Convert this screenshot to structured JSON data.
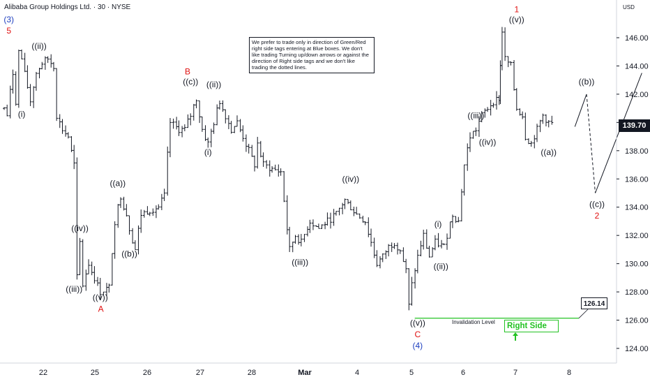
{
  "header": {
    "title": "Alibaba Group Holdings Ltd. · 30 · NYSE",
    "currency": "USD"
  },
  "note": {
    "text": "We prefer to trade only in direction of Green/Red right side tags entering at Blue boxes. We don't like trading Turning up/down arrows or against the direction of Right side tags and we don't like trading the dotted lines."
  },
  "current_price": "139.70",
  "invalidation": {
    "label": "Invalidation Level",
    "value": "126.14"
  },
  "right_side": {
    "label": "Right Side",
    "arrow": "arrow-up-icon"
  },
  "colors": {
    "blue": "#1e3fbf",
    "red": "#e01010",
    "green": "#22c222",
    "bars": "#131722"
  },
  "chart_data": {
    "type": "ohlc",
    "y_axis": {
      "ticks": [
        124,
        126,
        128,
        130,
        132,
        134,
        136,
        138,
        140,
        142,
        144,
        146
      ],
      "range": [
        123,
        148
      ]
    },
    "x_axis": {
      "tick_labels": [
        "22",
        "25",
        "26",
        "27",
        "28",
        "Mar",
        "4",
        "5",
        "6",
        "7",
        "8"
      ],
      "range": [
        0,
        10.7
      ]
    },
    "path": [
      [
        0,
        141.0
      ],
      [
        0.05,
        140.5
      ],
      [
        0.15,
        143.5
      ],
      [
        0.2,
        141.5
      ],
      [
        0.25,
        145.0
      ],
      [
        0.3,
        144.5
      ],
      [
        0.4,
        142.5
      ],
      [
        0.45,
        141.5
      ],
      [
        0.55,
        143.5
      ],
      [
        0.65,
        144.2
      ],
      [
        0.75,
        144.5
      ],
      [
        0.85,
        144.0
      ],
      [
        0.9,
        140.5
      ],
      [
        1.0,
        139.5
      ],
      [
        1.1,
        139.0
      ],
      [
        1.2,
        137.0
      ],
      [
        1.25,
        129.0
      ],
      [
        1.3,
        131.5
      ],
      [
        1.35,
        128.5
      ],
      [
        1.45,
        130.0
      ],
      [
        1.55,
        129.0
      ],
      [
        1.65,
        128.0
      ],
      [
        1.8,
        128.3
      ],
      [
        1.9,
        133.0
      ],
      [
        2.0,
        134.8
      ],
      [
        2.1,
        133.5
      ],
      [
        2.15,
        132.5
      ],
      [
        2.25,
        131.0
      ],
      [
        2.35,
        133.5
      ],
      [
        2.5,
        133.8
      ],
      [
        2.65,
        134.0
      ],
      [
        2.75,
        134.8
      ],
      [
        2.85,
        140.0
      ],
      [
        3.0,
        139.5
      ],
      [
        3.1,
        139.5
      ],
      [
        3.2,
        140.5
      ],
      [
        3.3,
        141.7
      ],
      [
        3.4,
        139.5
      ],
      [
        3.5,
        138.5
      ],
      [
        3.6,
        140.0
      ],
      [
        3.7,
        141.5
      ],
      [
        3.8,
        140.5
      ],
      [
        3.9,
        139.5
      ],
      [
        4.0,
        140.0
      ],
      [
        4.1,
        139.0
      ],
      [
        4.2,
        138.0
      ],
      [
        4.3,
        137.0
      ],
      [
        4.35,
        138.5
      ],
      [
        4.45,
        137.0
      ],
      [
        4.6,
        136.7
      ],
      [
        4.75,
        136.5
      ],
      [
        4.9,
        131.0
      ],
      [
        5.0,
        132.0
      ],
      [
        5.1,
        131.5
      ],
      [
        5.25,
        133.0
      ],
      [
        5.4,
        132.5
      ],
      [
        5.55,
        133.0
      ],
      [
        5.7,
        133.5
      ],
      [
        5.85,
        134.5
      ],
      [
        5.95,
        134.0
      ],
      [
        6.05,
        133.5
      ],
      [
        6.2,
        133.0
      ],
      [
        6.3,
        131.5
      ],
      [
        6.4,
        130.0
      ],
      [
        6.5,
        130.5
      ],
      [
        6.6,
        131.2
      ],
      [
        6.7,
        131.5
      ],
      [
        6.8,
        131.0
      ],
      [
        6.9,
        129.5
      ],
      [
        6.95,
        127.0
      ],
      [
        7.0,
        128.5
      ],
      [
        7.1,
        130.5
      ],
      [
        7.2,
        132.0
      ],
      [
        7.3,
        130.5
      ],
      [
        7.4,
        131.5
      ],
      [
        7.55,
        131.2
      ],
      [
        7.7,
        133.5
      ],
      [
        7.8,
        133.0
      ],
      [
        7.9,
        137.0
      ],
      [
        8.0,
        139.0
      ],
      [
        8.1,
        139.5
      ],
      [
        8.2,
        140.5
      ],
      [
        8.3,
        141.0
      ],
      [
        8.4,
        141.5
      ],
      [
        8.5,
        141.7
      ],
      [
        8.52,
        144.0
      ],
      [
        8.55,
        146.5
      ],
      [
        8.6,
        144.5
      ],
      [
        8.7,
        144.0
      ],
      [
        8.8,
        141.0
      ],
      [
        8.9,
        140.5
      ],
      [
        8.95,
        139.0
      ],
      [
        9.05,
        138.5
      ],
      [
        9.15,
        139.5
      ],
      [
        9.25,
        140.5
      ],
      [
        9.35,
        140.0
      ],
      [
        9.45,
        139.8
      ]
    ],
    "labels": [
      {
        "text": "(3)",
        "x": 0.08,
        "y": 147.1,
        "color": "blue"
      },
      {
        "text": "5",
        "x": 0.08,
        "y": 146.3,
        "color": "red"
      },
      {
        "text": "((ii))",
        "x": 0.6,
        "y": 145.2,
        "color": "black"
      },
      {
        "text": "(i)",
        "x": 0.3,
        "y": 140.4,
        "color": "black"
      },
      {
        "text": "((iv))",
        "x": 1.3,
        "y": 132.3,
        "color": "black"
      },
      {
        "text": "((iii))",
        "x": 1.2,
        "y": 128.0,
        "color": "black"
      },
      {
        "text": "((v))",
        "x": 1.65,
        "y": 127.4,
        "color": "black"
      },
      {
        "text": "A",
        "x": 1.66,
        "y": 126.6,
        "color": "red"
      },
      {
        "text": "((a))",
        "x": 1.95,
        "y": 135.5,
        "color": "black"
      },
      {
        "text": "((b))",
        "x": 2.15,
        "y": 130.5,
        "color": "black"
      },
      {
        "text": "B",
        "x": 3.15,
        "y": 143.4,
        "color": "red"
      },
      {
        "text": "((c))",
        "x": 3.2,
        "y": 142.7,
        "color": "black"
      },
      {
        "text": "((ii))",
        "x": 3.6,
        "y": 142.5,
        "color": "black"
      },
      {
        "text": "(i)",
        "x": 3.5,
        "y": 137.7,
        "color": "black"
      },
      {
        "text": "((iii))",
        "x": 5.08,
        "y": 129.9,
        "color": "black"
      },
      {
        "text": "((iv))",
        "x": 5.95,
        "y": 135.8,
        "color": "black"
      },
      {
        "text": "(i)",
        "x": 7.45,
        "y": 132.6,
        "color": "black"
      },
      {
        "text": "((ii))",
        "x": 7.5,
        "y": 129.6,
        "color": "black"
      },
      {
        "text": "((v))",
        "x": 7.1,
        "y": 125.6,
        "color": "black"
      },
      {
        "text": "C",
        "x": 7.1,
        "y": 124.8,
        "color": "red"
      },
      {
        "text": "(4)",
        "x": 7.1,
        "y": 124.0,
        "color": "blue"
      },
      {
        "text": "((iii))",
        "x": 8.1,
        "y": 140.3,
        "color": "black"
      },
      {
        "text": "((iv))",
        "x": 8.3,
        "y": 138.4,
        "color": "black"
      },
      {
        "text": "1",
        "x": 8.8,
        "y": 147.8,
        "color": "red"
      },
      {
        "text": "((v))",
        "x": 8.8,
        "y": 147.1,
        "color": "black"
      },
      {
        "text": "((a))",
        "x": 9.35,
        "y": 137.7,
        "color": "black"
      },
      {
        "text": "((b))",
        "x": 10.0,
        "y": 142.7,
        "color": "black"
      },
      {
        "text": "((c))",
        "x": 10.18,
        "y": 134.0,
        "color": "black"
      },
      {
        "text": "2",
        "x": 10.18,
        "y": 133.2,
        "color": "red"
      }
    ],
    "projection": {
      "solid_1": [
        [
          9.8,
          139.7
        ],
        [
          10.0,
          142.0
        ]
      ],
      "dashed": [
        [
          10.0,
          142.0
        ],
        [
          10.15,
          135.0
        ]
      ],
      "solid_2": [
        [
          10.15,
          135.0
        ],
        [
          10.95,
          143.5
        ]
      ]
    },
    "invalidation_line": {
      "y": 126.14,
      "x_start": 7.05,
      "x_end": 10.8
    }
  }
}
